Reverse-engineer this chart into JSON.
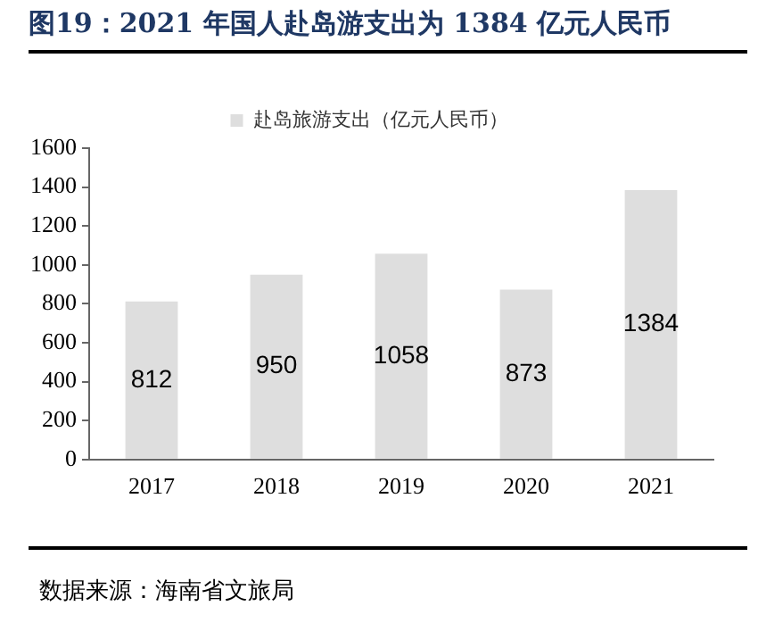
{
  "chart_data": {
    "type": "bar",
    "title": "图19：2021 年国人赴岛游支出为 1384 亿元人民币",
    "categories": [
      "2017",
      "2018",
      "2019",
      "2020",
      "2021"
    ],
    "series": [
      {
        "name": "赴岛旅游支出（亿元人民币）",
        "color": "#dedede",
        "values": [
          812,
          950,
          1058,
          873,
          1384
        ]
      }
    ],
    "ylim": [
      0,
      1600
    ],
    "yticks": [
      0,
      200,
      400,
      600,
      800,
      1000,
      1200,
      1400,
      1600
    ],
    "grid": false,
    "legend": "top",
    "data_labels": true,
    "annotations": [
      "数据来源：海南省文旅局"
    ]
  }
}
